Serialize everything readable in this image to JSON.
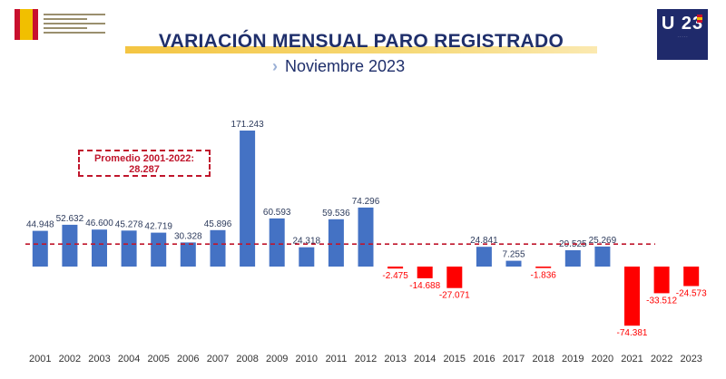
{
  "header": {
    "title": "VARIACIÓN MENSUAL PARO REGISTRADO",
    "subtitle": "Noviembre 2023",
    "logo_left_icon": "spanish-government-logo-icon",
    "logo_right_text": "U 23"
  },
  "colors": {
    "positive": "#4472c4",
    "negative": "#ff0000",
    "average_line": "#c0162c",
    "title": "#1f2f6b"
  },
  "average_box": {
    "label": "Promedio 2001-2022:",
    "value": "28.287"
  },
  "chart_data": {
    "type": "bar",
    "title": "VARIACIÓN MENSUAL PARO REGISTRADO",
    "subtitle": "Noviembre 2023",
    "categories": [
      "2001",
      "2002",
      "2003",
      "2004",
      "2005",
      "2006",
      "2007",
      "2008",
      "2009",
      "2010",
      "2011",
      "2012",
      "2013",
      "2014",
      "2015",
      "2016",
      "2017",
      "2018",
      "2019",
      "2020",
      "2021",
      "2022",
      "2023"
    ],
    "values": [
      44948,
      52632,
      46600,
      45278,
      42719,
      30328,
      45896,
      171243,
      60593,
      24318,
      59536,
      74296,
      -2475,
      -14688,
      -27071,
      24841,
      7255,
      -1836,
      20525,
      25269,
      -74381,
      -33512,
      -24573
    ],
    "labels": [
      "44.948",
      "52.632",
      "46.600",
      "45.278",
      "42.719",
      "30.328",
      "45.896",
      "171.243",
      "60.593",
      "24.318",
      "59.536",
      "74.296",
      "-2.475",
      "-14.688",
      "-27.071",
      "24.841",
      "7.255",
      "-1.836",
      "20.525",
      "25.269",
      "-74.381",
      "-33.512",
      "-24.573"
    ],
    "reference_line": {
      "value": 28287,
      "style": "dashed"
    },
    "ylim": [
      -90000,
      180000
    ],
    "grid": false,
    "legend": "none",
    "xlabel": "",
    "ylabel": ""
  }
}
